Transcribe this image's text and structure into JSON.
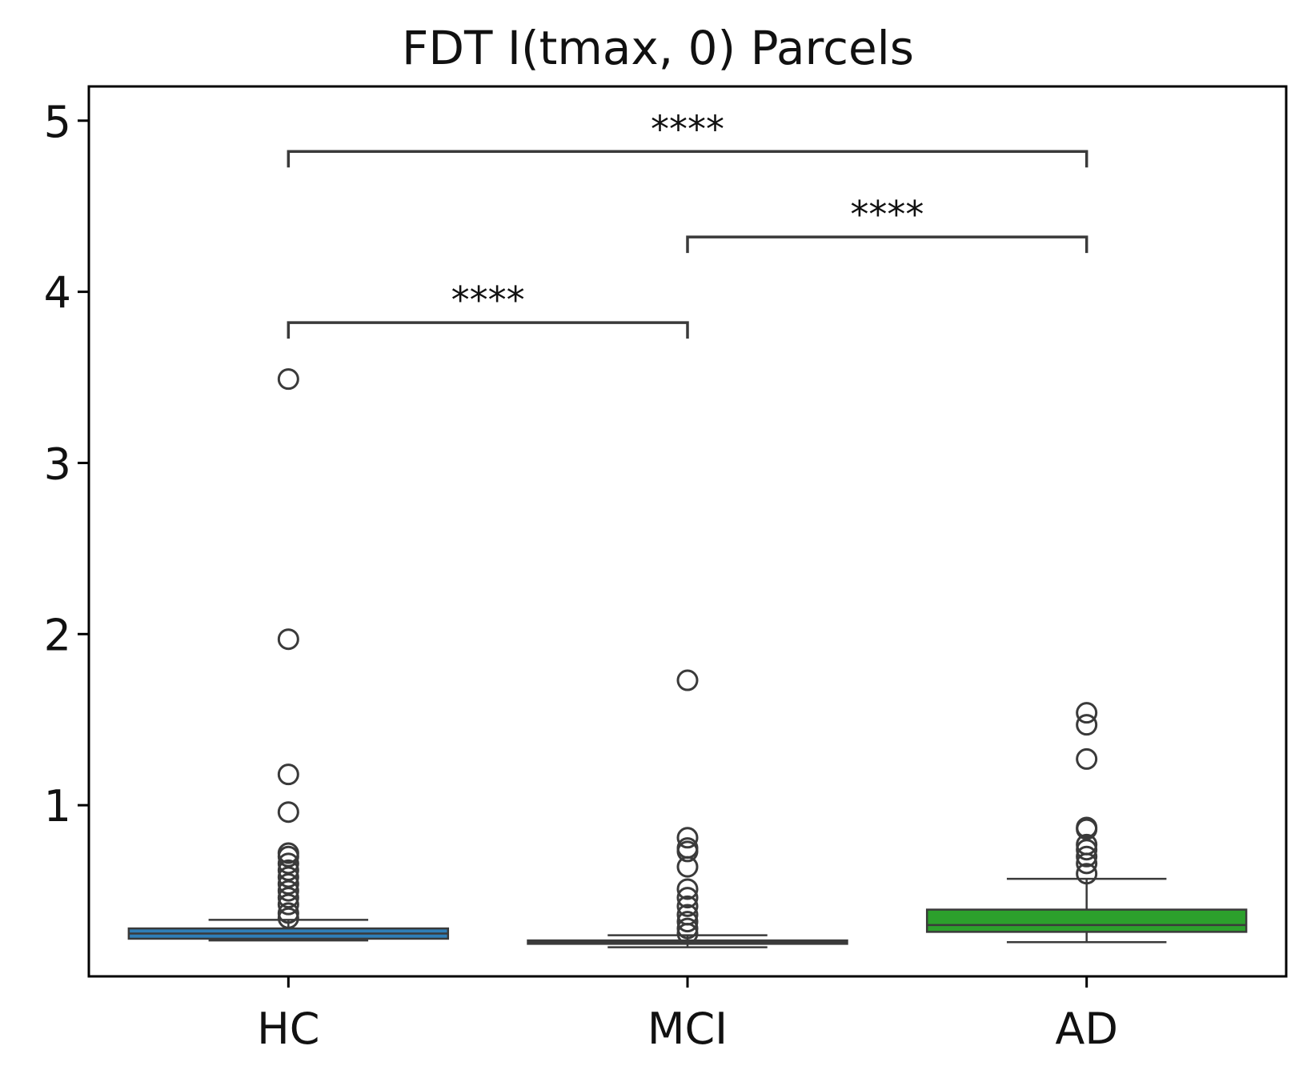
{
  "chart_data": {
    "type": "box",
    "title": "FDT I(tmax, 0) Parcels",
    "xlabel": "",
    "ylabel": "",
    "categories": [
      "HC",
      "MCI",
      "AD"
    ],
    "ylim": [
      0.0,
      5.2
    ],
    "yticks": [
      1,
      2,
      3,
      4,
      5
    ],
    "grid": false,
    "colors": {
      "HC": "#2f7eb8",
      "MCI": "#e07b1d",
      "AD": "#2ca02c",
      "lines": "#3a3a3a"
    },
    "boxes": [
      {
        "name": "HC",
        "whisker_low": 0.21,
        "q1": 0.22,
        "median": 0.25,
        "q3": 0.28,
        "whisker_high": 0.33,
        "outliers": [
          0.34,
          0.37,
          0.42,
          0.46,
          0.5,
          0.54,
          0.58,
          0.62,
          0.66,
          0.7,
          0.72,
          0.96,
          1.18,
          1.97,
          3.49
        ]
      },
      {
        "name": "MCI",
        "whisker_low": 0.17,
        "q1": 0.19,
        "median": 0.2,
        "q3": 0.21,
        "whisker_high": 0.24,
        "outliers": [
          0.25,
          0.28,
          0.32,
          0.36,
          0.41,
          0.46,
          0.51,
          0.64,
          0.73,
          0.75,
          0.81,
          1.73
        ]
      },
      {
        "name": "AD",
        "whisker_low": 0.2,
        "q1": 0.26,
        "median": 0.3,
        "q3": 0.39,
        "whisker_high": 0.57,
        "outliers": [
          0.6,
          0.66,
          0.7,
          0.74,
          0.77,
          0.86,
          0.87,
          1.27,
          1.47,
          1.54
        ]
      }
    ],
    "annotations": [
      {
        "from": "HC",
        "to": "MCI",
        "y": 3.82,
        "label": "****"
      },
      {
        "from": "MCI",
        "to": "AD",
        "y": 4.32,
        "label": "****"
      },
      {
        "from": "HC",
        "to": "AD",
        "y": 4.82,
        "label": "****"
      }
    ]
  }
}
